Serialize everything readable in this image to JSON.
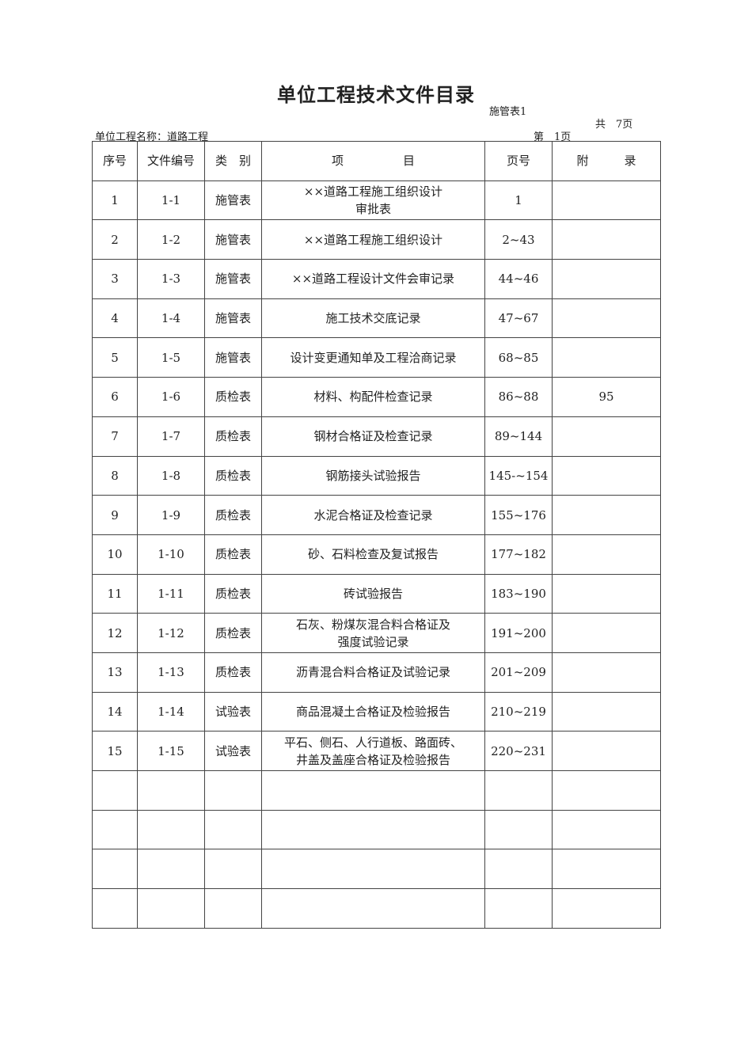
{
  "title": "单位工程技术文件目录",
  "form_no": "施管表1",
  "total_pages": "共　7页",
  "project_label": "单位工程名称：",
  "project_name": "道路工程",
  "page_no": "第　1页",
  "headers": [
    "序号",
    "文件编号",
    "类　别",
    "项　　　　　目",
    "页号",
    "附　　　录"
  ],
  "rows": [
    [
      "1",
      "1-1",
      "施管表",
      "××道路工程施工组织设计\n审批表",
      "1",
      ""
    ],
    [
      "2",
      "1-2",
      "施管表",
      "××道路工程施工组织设计",
      "2~43",
      ""
    ],
    [
      "3",
      "1-3",
      "施管表",
      "××道路工程设计文件会审记录",
      "44~46",
      ""
    ],
    [
      "4",
      "1-4",
      "施管表",
      "施工技术交底记录",
      "47~67",
      ""
    ],
    [
      "5",
      "1-5",
      "施管表",
      "设计变更通知单及工程洽商记录",
      "68~85",
      ""
    ],
    [
      "6",
      "1-6",
      "质检表",
      "材料、构配件检查记录",
      "86~88",
      "95"
    ],
    [
      "7",
      "1-7",
      "质检表",
      "钢材合格证及检查记录",
      "89~144",
      ""
    ],
    [
      "8",
      "1-8",
      "质检表",
      "钢筋接头试验报告",
      "145-~154",
      ""
    ],
    [
      "9",
      "1-9",
      "质检表",
      "水泥合格证及检查记录",
      "155~176",
      ""
    ],
    [
      "10",
      "1-10",
      "质检表",
      "砂、石料检查及复试报告",
      "177~182",
      ""
    ],
    [
      "11",
      "1-11",
      "质检表",
      "砖试验报告",
      "183~190",
      ""
    ],
    [
      "12",
      "1-12",
      "质检表",
      "石灰、粉煤灰混合料合格证及\n强度试验记录",
      "191~200",
      ""
    ],
    [
      "13",
      "1-13",
      "质检表",
      "沥青混合料合格证及试验记录",
      "201~209",
      ""
    ],
    [
      "14",
      "1-14",
      "试验表",
      "商品混凝土合格证及检验报告",
      "210~219",
      ""
    ],
    [
      "15",
      "1-15",
      "试验表",
      "平石、侧石、人行道板、路面砖、\n井盖及盖座合格证及检验报告",
      "220~231",
      ""
    ],
    [
      "",
      "",
      "",
      "",
      "",
      ""
    ],
    [
      "",
      "",
      "",
      "",
      "",
      ""
    ],
    [
      "",
      "",
      "",
      "",
      "",
      ""
    ],
    [
      "",
      "",
      "",
      "",
      "",
      ""
    ]
  ]
}
